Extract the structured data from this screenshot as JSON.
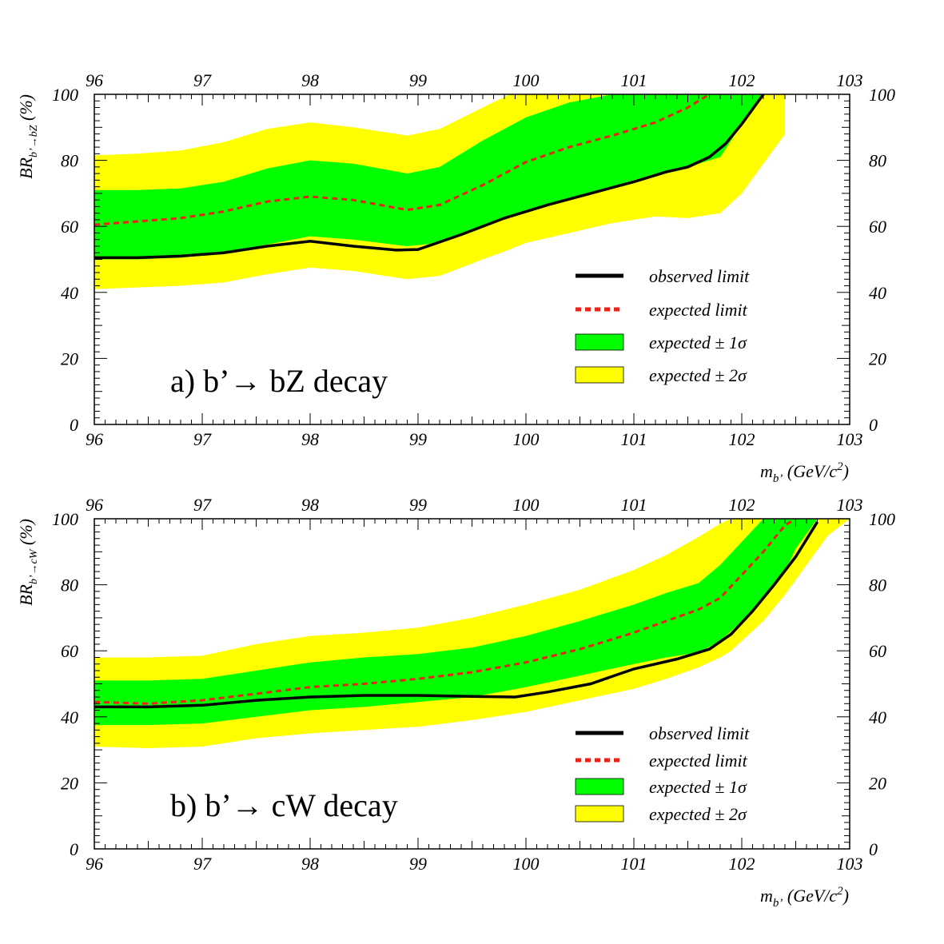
{
  "chart_data": [
    {
      "type": "line",
      "panel_label": "a) b’→ bZ decay",
      "xlabel_main": "m",
      "xlabel_sub": "b’",
      "xlabel_unit": " (GeV/c",
      "xlabel_sup": "2",
      "xlabel_close": ")",
      "ylabel_main": "BR",
      "ylabel_sub": "b’→bZ",
      "ylabel_unit": " (%)",
      "xlim": [
        96,
        103
      ],
      "ylim": [
        0,
        100
      ],
      "x_ticks": [
        "96",
        "97",
        "98",
        "99",
        "100",
        "101",
        "102",
        "103"
      ],
      "y_ticks": [
        "0",
        "20",
        "40",
        "60",
        "80",
        "100"
      ],
      "legend": {
        "position": "lower-right",
        "observed": "observed limit",
        "expected": "expected limit",
        "sigma1": "expected ± 1σ",
        "sigma2": "expected ± 2σ"
      },
      "colors": {
        "observed": "#000000",
        "expected": "#e8231a",
        "sigma1": "#00ff00",
        "sigma2": "#ffff00"
      },
      "series": [
        {
          "name": "observed limit",
          "x": [
            96,
            96.4,
            96.8,
            97.2,
            97.6,
            98,
            98.4,
            98.8,
            99,
            99.4,
            99.8,
            100.2,
            100.6,
            101,
            101.3,
            101.5,
            101.7,
            101.85,
            102,
            102.1,
            102.2
          ],
          "y": [
            50.5,
            50.5,
            51,
            52,
            54,
            55.5,
            54,
            52.8,
            53,
            57.5,
            62.5,
            66.5,
            70,
            73.5,
            76.5,
            78,
            81,
            85,
            91,
            95.5,
            100
          ]
        },
        {
          "name": "expected limit",
          "x": [
            96,
            96.4,
            96.8,
            97.2,
            97.6,
            98,
            98.4,
            98.9,
            99.2,
            99.6,
            100,
            100.4,
            100.8,
            101.2,
            101.5,
            101.7
          ],
          "y": [
            60.5,
            61.5,
            62.5,
            64.5,
            67.5,
            69,
            68,
            65,
            66.5,
            72.5,
            79.5,
            84,
            87.5,
            91.5,
            96,
            100
          ]
        },
        {
          "name": "expected ± 1σ",
          "x": [
            96,
            96.4,
            96.8,
            97.2,
            97.6,
            98,
            98.4,
            98.9,
            99.2,
            99.6,
            100,
            100.4,
            100.8,
            101.2,
            101.5,
            101.8,
            102,
            102.2
          ],
          "upper": [
            71,
            71,
            71.5,
            73.5,
            77.5,
            80,
            79,
            76,
            78,
            86,
            93,
            97.5,
            100,
            100,
            100,
            100,
            100,
            100
          ],
          "lower": [
            50,
            50,
            50.5,
            52,
            54.5,
            57,
            56,
            54,
            55,
            60,
            65,
            68.5,
            72,
            76,
            78,
            81,
            91,
            100
          ]
        },
        {
          "name": "expected ± 2σ",
          "x": [
            96,
            96.4,
            96.8,
            97.2,
            97.6,
            98,
            98.4,
            98.9,
            99.2,
            99.6,
            99.85,
            100,
            100.4,
            100.8,
            101.2,
            101.5,
            101.8,
            102,
            102.2,
            102.4
          ],
          "upper": [
            81.5,
            82,
            83,
            85.5,
            89.5,
            91.5,
            90,
            87.5,
            89.5,
            96,
            100,
            100,
            100,
            100,
            100,
            100,
            100,
            100,
            100,
            100
          ],
          "lower": [
            41,
            41.5,
            42,
            43,
            45.5,
            47.5,
            46.5,
            44,
            45,
            50,
            53,
            55,
            58,
            61,
            63,
            62.5,
            64,
            70,
            79,
            88
          ]
        }
      ]
    },
    {
      "type": "line",
      "panel_label": "b) b’→ cW decay",
      "xlabel_main": "m",
      "xlabel_sub": "b’",
      "xlabel_unit": " (GeV/c",
      "xlabel_sup": "2",
      "xlabel_close": ")",
      "ylabel_main": "BR",
      "ylabel_sub": "b’→cW",
      "ylabel_unit": " (%)",
      "xlim": [
        96,
        103
      ],
      "ylim": [
        0,
        100
      ],
      "x_ticks": [
        "96",
        "97",
        "98",
        "99",
        "100",
        "101",
        "102",
        "103"
      ],
      "y_ticks": [
        "0",
        "20",
        "40",
        "60",
        "80",
        "100"
      ],
      "legend": {
        "position": "lower-right",
        "observed": "observed limit",
        "expected": "expected limit",
        "sigma1": "expected ± 1σ",
        "sigma2": "expected ± 2σ"
      },
      "colors": {
        "observed": "#000000",
        "expected": "#e8231a",
        "sigma1": "#00ff00",
        "sigma2": "#ffff00"
      },
      "series": [
        {
          "name": "observed limit",
          "x": [
            96,
            96.5,
            97,
            97.5,
            98,
            98.5,
            99,
            99.5,
            99.9,
            100.2,
            100.6,
            101,
            101.4,
            101.7,
            101.9,
            102.1,
            102.3,
            102.5,
            102.7
          ],
          "y": [
            43,
            43,
            43.5,
            45,
            46,
            46.5,
            46.5,
            46.2,
            46,
            47.5,
            50,
            54.5,
            57.5,
            60.5,
            65,
            72,
            80,
            88.5,
            99
          ]
        },
        {
          "name": "expected limit",
          "x": [
            96,
            96.5,
            97,
            97.5,
            98,
            98.5,
            99,
            99.5,
            100,
            100.5,
            101,
            101.3,
            101.6,
            101.8,
            102,
            102.2,
            102.4,
            102.5
          ],
          "y": [
            44.5,
            44,
            45,
            47,
            49,
            50,
            51.5,
            53.5,
            56.5,
            60.5,
            65.5,
            69,
            72.5,
            76,
            83,
            90,
            98,
            100
          ]
        },
        {
          "name": "expected ± 1σ",
          "x": [
            96,
            96.5,
            97,
            97.5,
            98,
            98.5,
            99,
            99.5,
            100,
            100.5,
            101,
            101.3,
            101.6,
            101.8,
            102,
            102.2,
            102.4,
            102.5,
            102.7
          ],
          "upper": [
            51,
            51,
            51.5,
            54,
            56.5,
            58,
            59,
            61,
            64.5,
            69,
            74,
            77.5,
            80.5,
            86,
            93,
            100,
            100,
            100,
            100
          ],
          "lower": [
            37.5,
            37.5,
            38,
            40,
            42,
            43,
            44.5,
            46,
            49,
            52.5,
            56,
            58,
            59.5,
            63,
            69,
            76,
            84,
            91,
            100
          ]
        },
        {
          "name": "expected ± 2σ",
          "x": [
            96,
            96.5,
            97,
            97.5,
            98,
            98.5,
            99,
            99.5,
            100,
            100.5,
            101,
            101.3,
            101.6,
            101.8,
            101.9,
            102,
            102.2,
            102.4,
            102.6,
            102.8,
            103
          ],
          "upper": [
            58,
            58,
            58.5,
            62,
            64.5,
            65.5,
            67,
            70,
            74,
            78.5,
            84.5,
            89,
            94.5,
            98.5,
            100,
            100,
            100,
            100,
            100,
            100,
            100
          ],
          "lower": [
            31,
            30.5,
            31,
            33.5,
            35,
            36,
            37,
            39,
            41.5,
            45,
            48.5,
            51.5,
            55,
            58,
            60,
            63,
            69,
            77,
            86,
            95,
            100
          ]
        }
      ]
    }
  ]
}
